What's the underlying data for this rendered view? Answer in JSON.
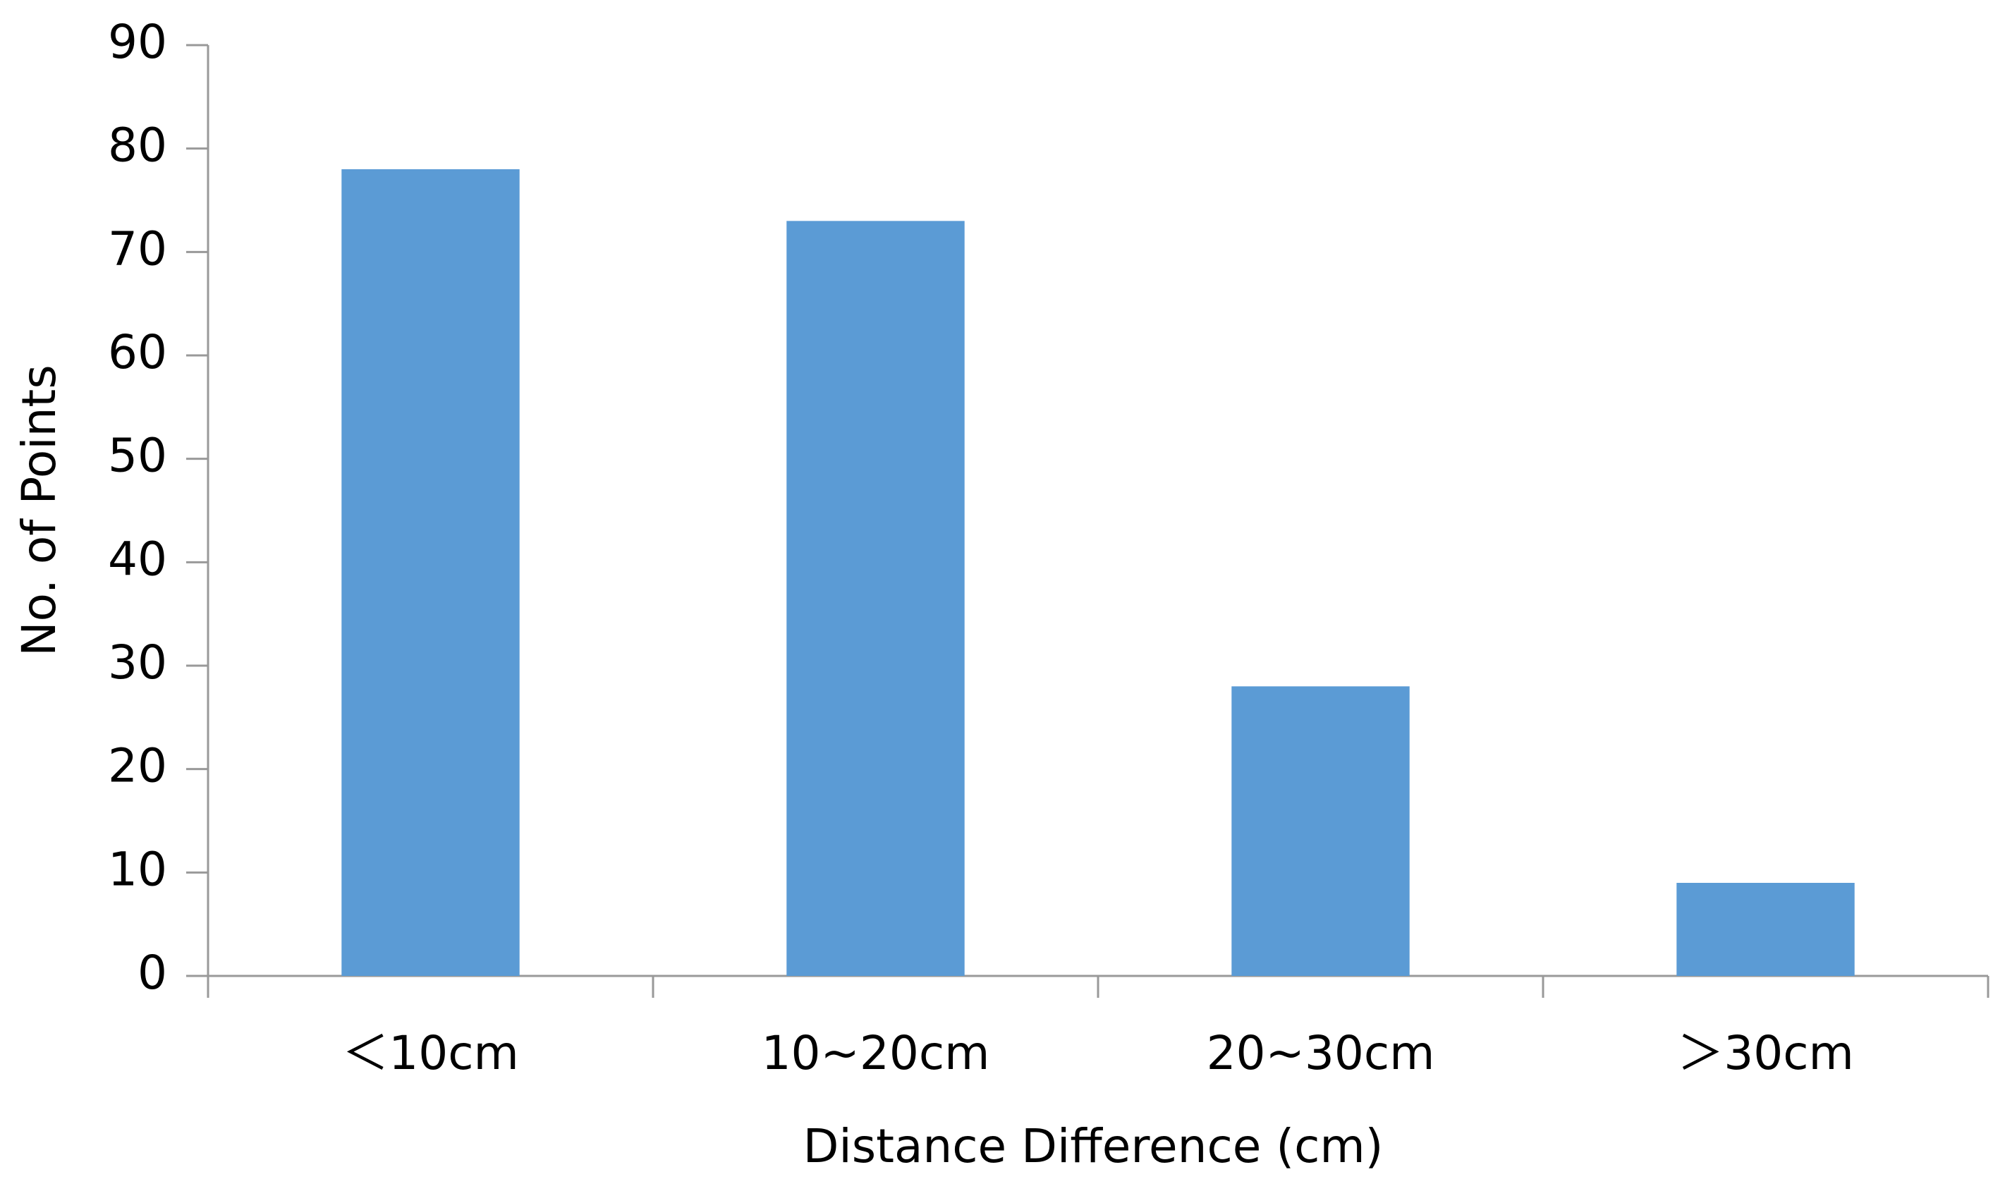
{
  "chart_data": {
    "type": "bar",
    "x_label": "Distance Difference (cm)",
    "y_label": "No. of Points",
    "categories": [
      "＜10cm",
      "10~20cm",
      "20~30cm",
      "＞30cm"
    ],
    "values": [
      78,
      73,
      28,
      9
    ],
    "color": "#5b9bd5",
    "ylim": [
      0,
      90
    ],
    "yticks": [
      0,
      10,
      20,
      30,
      40,
      50,
      60,
      70,
      80,
      90
    ],
    "grid": false
  }
}
